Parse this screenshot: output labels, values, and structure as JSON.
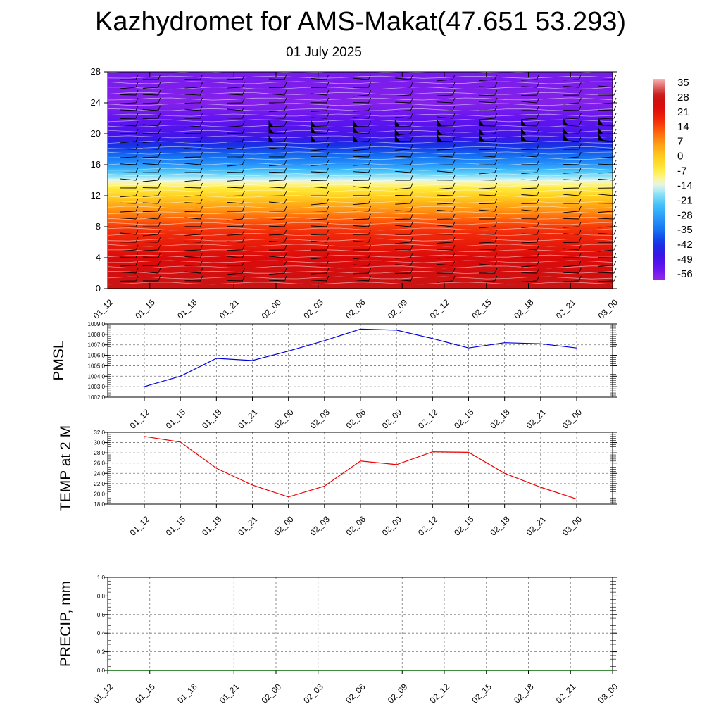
{
  "title": "Kazhydromet for AMS-Makat(47.651 53.293)",
  "subtitle": "01 July 2025",
  "time_labels": [
    "01_12",
    "01_15",
    "01_18",
    "01_21",
    "02_00",
    "02_03",
    "02_06",
    "02_09",
    "02_12",
    "02_15",
    "02_18",
    "02_21",
    "03_00"
  ],
  "chart_data": [
    {
      "type": "heatmap",
      "description_key": "cross-section",
      "y_ticks": [
        0,
        4,
        8,
        12,
        16,
        20,
        24,
        28
      ],
      "ylim": [
        0,
        28
      ],
      "x": [
        "01_12",
        "01_15",
        "01_18",
        "01_21",
        "02_00",
        "02_03",
        "02_06",
        "02_09",
        "02_12",
        "02_15",
        "02_18",
        "02_21",
        "03_00"
      ],
      "colorbar_labels": [
        "35",
        "28",
        "21",
        "14",
        "7",
        "0",
        "-7",
        "-14",
        "-21",
        "-28",
        "-35",
        "-42",
        "-49",
        "-56"
      ],
      "colorbar_range": [
        -60,
        38
      ],
      "temperature_profile": [
        {
          "level": 0,
          "value": 30
        },
        {
          "level": 4,
          "value": 24
        },
        {
          "level": 8,
          "value": 16
        },
        {
          "level": 11,
          "value": 4
        },
        {
          "level": 13,
          "value": -6
        },
        {
          "level": 14,
          "value": -14
        },
        {
          "level": 16,
          "value": -30
        },
        {
          "level": 20,
          "value": -50
        },
        {
          "level": 24,
          "value": -58
        },
        {
          "level": 28,
          "value": -56
        }
      ],
      "colors": {
        "hot": "#cc0000",
        "warm": "#ff8800",
        "zero": "#ffee44",
        "cold": "#3399ff",
        "frigid": "#3300ee",
        "top": "#8833ee"
      }
    },
    {
      "type": "line",
      "ylabel": "PMSL",
      "x": [
        "01_12",
        "01_15",
        "01_18",
        "01_21",
        "02_00",
        "02_03",
        "02_06",
        "02_09",
        "02_12",
        "02_15",
        "02_18",
        "02_21",
        "03_00"
      ],
      "values": [
        1003.0,
        1004.0,
        1005.7,
        1005.5,
        1006.4,
        1007.4,
        1008.5,
        1008.4,
        1007.6,
        1006.7,
        1007.2,
        1007.1,
        1006.7
      ],
      "y_ticks": [
        "1002.0",
        "1003.0",
        "1004.0",
        "1005.0",
        "1006.0",
        "1007.0",
        "1008.0",
        "1009.0"
      ],
      "ylim": [
        1002,
        1009
      ],
      "color": "#0000dd"
    },
    {
      "type": "line",
      "ylabel": "TEMP at 2 M",
      "x": [
        "01_12",
        "01_15",
        "01_18",
        "01_21",
        "02_00",
        "02_03",
        "02_06",
        "02_09",
        "02_12",
        "02_15",
        "02_18",
        "02_21",
        "03_00"
      ],
      "values": [
        31.2,
        30.1,
        25.0,
        21.7,
        19.4,
        21.5,
        26.4,
        25.7,
        28.2,
        28.1,
        24.0,
        21.3,
        19.0
      ],
      "y_ticks": [
        "18.0",
        "20.0",
        "22.0",
        "24.0",
        "26.0",
        "28.0",
        "30.0",
        "32.0"
      ],
      "ylim": [
        18,
        32
      ],
      "color": "#ee0000"
    },
    {
      "type": "line",
      "ylabel": "PRECIP, mm",
      "x": [
        "01_12",
        "01_15",
        "01_18",
        "01_21",
        "02_00",
        "02_03",
        "02_06",
        "02_09",
        "02_12",
        "02_15",
        "02_18",
        "02_21",
        "03_00"
      ],
      "values": [
        0,
        0,
        0,
        0,
        0,
        0,
        0,
        0,
        0,
        0,
        0,
        0,
        0
      ],
      "y_ticks": [
        "0.0",
        "0.2",
        "0.4",
        "0.6",
        "0.8",
        "1.0"
      ],
      "ylim": [
        0,
        1
      ],
      "color": "#006600"
    }
  ]
}
